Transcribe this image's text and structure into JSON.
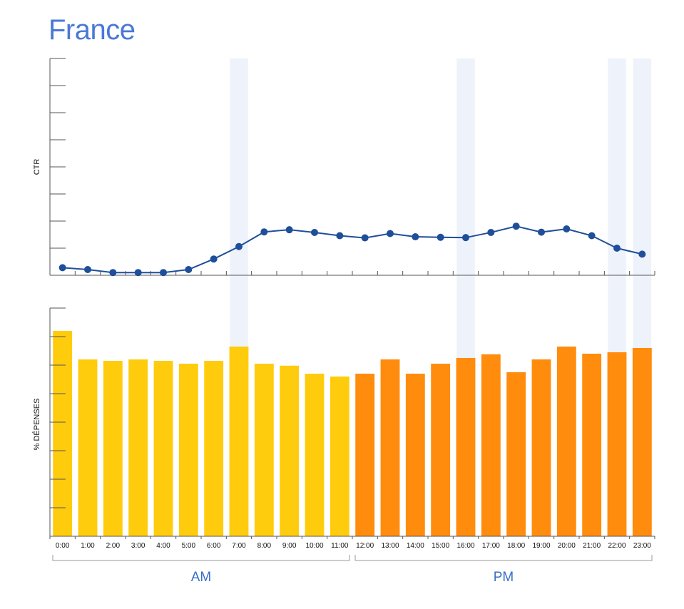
{
  "page": {
    "title": "France"
  },
  "colors": {
    "title": "#4a78d6",
    "ctr_line": "#1f4e9a",
    "am_bar": "#ffcc0d",
    "pm_bar": "#ff8c0d",
    "highlight": "#eef2fa",
    "axis": "#555555"
  },
  "chart_data": [
    {
      "type": "line",
      "ylabel": "CTR",
      "categories": [
        "0:00",
        "1:00",
        "2:00",
        "3:00",
        "4:00",
        "5:00",
        "6:00",
        "7:00",
        "8:00",
        "9:00",
        "10:00",
        "11:00",
        "12:00",
        "13:00",
        "14:00",
        "15:00",
        "16:00",
        "17:00",
        "18:00",
        "19:00",
        "20:00",
        "21:00",
        "22:00",
        "23:00"
      ],
      "series": [
        {
          "values": [
            2.8,
            2.1,
            1.0,
            1.0,
            1.0,
            2.1,
            6.0,
            10.6,
            16.0,
            16.8,
            15.8,
            14.6,
            13.8,
            15.4,
            14.2,
            14.0,
            13.9,
            15.8,
            18.1,
            15.9,
            17.1,
            14.6,
            10.0,
            7.8
          ]
        }
      ],
      "ylim": [
        0,
        80
      ],
      "yticks": 8,
      "highlighted_categories": [
        "7:00",
        "16:00",
        "22:00",
        "23:00"
      ],
      "grid": false
    },
    {
      "type": "bar",
      "ylabel": "% DÉPENSES",
      "categories": [
        "0:00",
        "1:00",
        "2:00",
        "3:00",
        "4:00",
        "5:00",
        "6:00",
        "7:00",
        "8:00",
        "9:00",
        "10:00",
        "11:00",
        "12:00",
        "13:00",
        "14:00",
        "15:00",
        "16:00",
        "17:00",
        "18:00",
        "19:00",
        "20:00",
        "21:00",
        "22:00",
        "23:00"
      ],
      "series": [
        {
          "values": [
            7.2,
            6.2,
            6.15,
            6.2,
            6.15,
            6.05,
            6.15,
            6.65,
            6.05,
            5.98,
            5.7,
            5.6,
            5.7,
            6.2,
            5.7,
            6.05,
            6.25,
            6.38,
            5.75,
            6.2,
            6.65,
            6.4,
            6.45,
            6.6
          ]
        }
      ],
      "ylim": [
        0,
        8
      ],
      "yticks": 8,
      "grid": false
    }
  ],
  "groups": [
    {
      "label": "AM",
      "from": "0:00",
      "to": "11:00"
    },
    {
      "label": "PM",
      "from": "12:00",
      "to": "23:00"
    }
  ]
}
